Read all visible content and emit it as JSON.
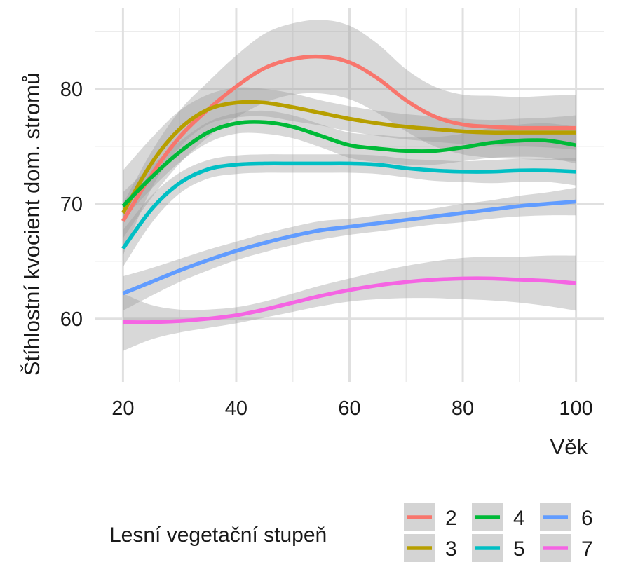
{
  "chart_data": {
    "type": "line",
    "xlabel": "Věk",
    "ylabel": "Štíhlostní kvocient dom. stromů",
    "xlim": [
      15,
      105
    ],
    "ylim": [
      54.5,
      87
    ],
    "xticks": [
      20,
      40,
      60,
      80,
      100
    ],
    "yticks": [
      60,
      70,
      80
    ],
    "xtick_labels": [
      "20",
      "40",
      "60",
      "80",
      "100"
    ],
    "ytick_labels": [
      "60",
      "70",
      "80"
    ],
    "grid": true,
    "legend": {
      "title": "Lesní vegetační stupeň",
      "position": "bottom"
    },
    "series": [
      {
        "name": "2",
        "color": "#F8766D",
        "x": [
          20,
          25,
          30,
          35,
          40,
          45,
          50,
          55,
          60,
          65,
          70,
          75,
          80,
          85,
          90,
          95,
          100
        ],
        "y": [
          68.5,
          72.5,
          75.8,
          78.2,
          80.2,
          81.8,
          82.6,
          82.8,
          82.3,
          80.9,
          79.0,
          77.6,
          76.9,
          76.7,
          76.6,
          76.6,
          76.6
        ],
        "lower": [
          67.0,
          70.5,
          73.5,
          75.8,
          77.5,
          78.8,
          79.5,
          79.6,
          79.1,
          77.9,
          76.3,
          75.0,
          74.3,
          74.0,
          73.9,
          73.8,
          73.7
        ],
        "upper": [
          70.0,
          74.5,
          78.1,
          80.6,
          82.9,
          84.8,
          85.7,
          86.0,
          85.5,
          83.9,
          81.7,
          80.2,
          79.5,
          79.4,
          79.3,
          79.4,
          79.5
        ]
      },
      {
        "name": "3",
        "color": "#B79F00",
        "x": [
          20,
          25,
          30,
          35,
          40,
          45,
          50,
          55,
          60,
          65,
          70,
          75,
          80,
          85,
          90,
          95,
          100
        ],
        "y": [
          69.2,
          73.5,
          76.5,
          78.2,
          78.8,
          78.8,
          78.4,
          77.9,
          77.4,
          77.0,
          76.7,
          76.5,
          76.3,
          76.2,
          76.2,
          76.2,
          76.2
        ],
        "lower": [
          65.5,
          71.3,
          74.9,
          76.9,
          77.5,
          77.6,
          77.2,
          76.8,
          76.3,
          75.9,
          75.6,
          75.4,
          75.2,
          75.1,
          75.0,
          74.9,
          74.7
        ],
        "upper": [
          72.9,
          75.7,
          78.1,
          79.5,
          80.1,
          80.0,
          79.6,
          79.0,
          78.5,
          78.1,
          77.8,
          77.6,
          77.4,
          77.3,
          77.4,
          77.5,
          77.7
        ]
      },
      {
        "name": "4",
        "color": "#00BA38",
        "x": [
          20,
          25,
          30,
          35,
          40,
          45,
          50,
          55,
          60,
          65,
          70,
          75,
          80,
          85,
          90,
          95,
          100
        ],
        "y": [
          69.8,
          72.3,
          74.5,
          76.2,
          77.0,
          77.1,
          76.7,
          75.9,
          75.1,
          74.8,
          74.6,
          74.6,
          74.9,
          75.3,
          75.5,
          75.5,
          75.1
        ],
        "lower": [
          68.6,
          71.3,
          73.6,
          75.3,
          76.1,
          76.1,
          75.7,
          74.9,
          74.0,
          73.6,
          73.4,
          73.4,
          73.7,
          74.0,
          74.1,
          74.0,
          73.5
        ],
        "upper": [
          71.0,
          73.3,
          75.4,
          77.1,
          77.9,
          78.1,
          77.7,
          76.9,
          76.2,
          76.0,
          75.8,
          75.8,
          76.1,
          76.6,
          76.9,
          77.0,
          76.7
        ]
      },
      {
        "name": "5",
        "color": "#00BFC4",
        "x": [
          20,
          25,
          30,
          35,
          40,
          45,
          50,
          55,
          60,
          65,
          70,
          75,
          80,
          85,
          90,
          95,
          100
        ],
        "y": [
          66.1,
          69.5,
          71.8,
          73.0,
          73.4,
          73.5,
          73.5,
          73.5,
          73.5,
          73.4,
          73.1,
          72.9,
          72.8,
          72.8,
          72.9,
          72.9,
          72.8
        ],
        "lower": [
          64.5,
          68.3,
          70.9,
          72.2,
          72.6,
          72.7,
          72.7,
          72.7,
          72.7,
          72.6,
          72.3,
          72.0,
          71.9,
          71.8,
          71.9,
          71.9,
          71.6
        ],
        "upper": [
          67.7,
          70.7,
          72.7,
          73.8,
          74.2,
          74.3,
          74.3,
          74.3,
          74.3,
          74.2,
          73.9,
          73.8,
          73.7,
          73.8,
          73.9,
          73.9,
          74.0
        ]
      },
      {
        "name": "6",
        "color": "#619CFF",
        "x": [
          20,
          25,
          30,
          35,
          40,
          45,
          50,
          55,
          60,
          65,
          70,
          75,
          80,
          85,
          90,
          95,
          100
        ],
        "y": [
          62.2,
          63.2,
          64.2,
          65.1,
          65.9,
          66.6,
          67.2,
          67.7,
          68.0,
          68.3,
          68.6,
          68.9,
          69.2,
          69.5,
          69.8,
          70.0,
          70.2
        ],
        "lower": [
          60.7,
          62.0,
          63.2,
          64.2,
          65.1,
          65.8,
          66.4,
          66.9,
          67.3,
          67.6,
          67.9,
          68.2,
          68.4,
          68.7,
          68.9,
          69.0,
          69.0
        ],
        "upper": [
          63.7,
          64.4,
          65.2,
          66.0,
          66.7,
          67.4,
          68.0,
          68.5,
          68.7,
          69.0,
          69.3,
          69.6,
          70.0,
          70.3,
          70.7,
          71.0,
          71.4
        ]
      },
      {
        "name": "7",
        "color": "#F564E3",
        "x": [
          20,
          25,
          30,
          35,
          40,
          45,
          50,
          55,
          60,
          65,
          70,
          75,
          80,
          85,
          90,
          95,
          100
        ],
        "y": [
          59.7,
          59.7,
          59.8,
          60.0,
          60.3,
          60.8,
          61.4,
          62.0,
          62.5,
          62.9,
          63.2,
          63.4,
          63.5,
          63.5,
          63.4,
          63.3,
          63.1
        ],
        "lower": [
          57.2,
          58.2,
          58.8,
          59.2,
          59.6,
          60.1,
          60.6,
          61.1,
          61.5,
          61.7,
          61.8,
          61.8,
          61.7,
          61.6,
          61.4,
          61.1,
          60.7
        ],
        "upper": [
          62.2,
          61.2,
          60.8,
          60.8,
          61.0,
          61.5,
          62.2,
          62.9,
          63.5,
          64.1,
          64.6,
          65.0,
          65.3,
          65.4,
          65.4,
          65.5,
          65.5
        ]
      }
    ]
  }
}
